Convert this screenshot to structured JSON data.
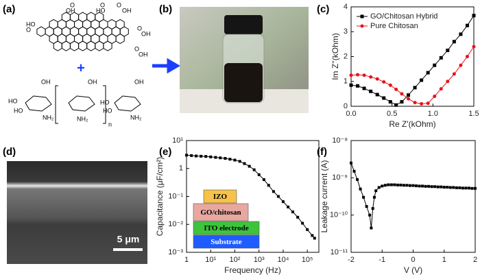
{
  "panel_labels": [
    "(a)",
    "(b)",
    "(c)",
    "(d)",
    "(e)",
    "(f)"
  ],
  "graphene_oxide_labels": [
    "O",
    "OH",
    "HO",
    "O",
    "O",
    "OH",
    "HO",
    "O",
    "O",
    "OH",
    "O",
    "OH"
  ],
  "plus": "+",
  "chitosan_labels": [
    "OH",
    "HO",
    "HO",
    "NH₂",
    "OH",
    "NH₂",
    "n",
    "OH",
    "HO",
    "HO",
    "NH₂"
  ],
  "sem_scale_bar": "5 μm",
  "chart_data": [
    {
      "type": "line",
      "xlabel": "Re Z'(kOhm)",
      "ylabel": "Im Z''(kOhm)",
      "x": [
        0,
        0.08,
        0.16,
        0.24,
        0.32,
        0.4,
        0.48,
        0.55,
        0.62,
        0.7,
        0.78,
        0.86,
        0.94,
        1.02,
        1.1,
        1.18,
        1.26,
        1.34,
        1.42,
        1.5
      ],
      "series": [
        {
          "name": "GO/Chitosan Hybrid",
          "color": "#000000",
          "marker": "square",
          "values": [
            0.85,
            0.82,
            0.72,
            0.6,
            0.47,
            0.33,
            0.18,
            0.05,
            0.18,
            0.45,
            0.75,
            1.05,
            1.35,
            1.65,
            1.95,
            2.25,
            2.6,
            2.9,
            3.25,
            3.65
          ]
        },
        {
          "name": "Pure Chitosan",
          "color": "#e8121a",
          "marker": "circle",
          "values": [
            1.25,
            1.27,
            1.25,
            1.18,
            1.1,
            0.98,
            0.85,
            0.68,
            0.5,
            0.3,
            0.15,
            0.1,
            0.12,
            0.4,
            0.7,
            1.0,
            1.3,
            1.65,
            2.0,
            2.4
          ]
        }
      ],
      "xlim": [
        0,
        1.5
      ],
      "ylim": [
        0,
        4
      ],
      "xticks": [
        {
          "value": 0,
          "label": "0.0"
        },
        0.5,
        {
          "value": 1,
          "label": "1.0"
        },
        1.5
      ],
      "yticks": [
        0,
        1,
        2,
        3,
        4
      ],
      "legend": "upper left"
    },
    {
      "type": "line",
      "xlabel": "Frequency (Hz)",
      "ylabel": "Capacitance (μF/cm²)",
      "log_x": true,
      "log_y": true,
      "x": [
        1,
        1.6,
        2.5,
        4,
        6.3,
        10,
        16,
        25,
        40,
        63,
        100,
        160,
        250,
        400,
        630,
        1000,
        1600,
        2500,
        4000,
        6300,
        10000,
        16000,
        25000,
        40000,
        63000,
        100000,
        160000,
        200000
      ],
      "series": [
        {
          "color": "#000000",
          "marker": "square",
          "values": [
            3.0,
            2.9,
            2.8,
            2.75,
            2.7,
            2.6,
            2.5,
            2.4,
            2.3,
            2.15,
            2.0,
            1.8,
            1.5,
            1.2,
            0.9,
            0.6,
            0.4,
            0.25,
            0.15,
            0.1,
            0.065,
            0.042,
            0.028,
            0.018,
            0.011,
            0.0065,
            0.004,
            0.0032
          ]
        }
      ],
      "xlim": [
        1,
        300000
      ],
      "ylim": [
        0.001,
        10
      ],
      "xticks": [
        1,
        {
          "value": 10,
          "label": "10¹"
        },
        {
          "value": 100,
          "label": "10²"
        },
        {
          "value": 1000,
          "label": "10³"
        },
        {
          "value": 10000,
          "label": "10⁴"
        },
        {
          "value": 100000,
          "label": "10⁵"
        }
      ],
      "yticks": [
        {
          "value": 0.001,
          "label": "10⁻³"
        },
        {
          "value": 0.01,
          "label": "10⁻²"
        },
        {
          "value": 0.1,
          "label": "10⁻¹"
        },
        1,
        {
          "value": 10,
          "label": "10¹"
        }
      ],
      "inset_layers": [
        {
          "label": "IZO",
          "color": "#f7c24a"
        },
        {
          "label": "GO/chitosan",
          "color": "#e8a8a0"
        },
        {
          "label": "ITO electrode",
          "color": "#3dc43d"
        },
        {
          "label": "Substrate",
          "color": "#1f5cff"
        }
      ]
    },
    {
      "type": "line",
      "xlabel": "V (V)",
      "ylabel": "Leakage current (A)",
      "log_y": true,
      "x": [
        -2,
        -1.9,
        -1.8,
        -1.7,
        -1.6,
        -1.5,
        -1.4,
        -1.35,
        -1.3,
        -1.25,
        -1.2,
        -1.1,
        -1,
        -0.9,
        -0.8,
        -0.7,
        -0.6,
        -0.5,
        -0.4,
        -0.3,
        -0.2,
        -0.1,
        0,
        0.1,
        0.2,
        0.3,
        0.4,
        0.5,
        0.6,
        0.7,
        0.8,
        0.9,
        1,
        1.1,
        1.2,
        1.3,
        1.4,
        1.5,
        1.6,
        1.7,
        1.8,
        1.9,
        2
      ],
      "series": [
        {
          "color": "#000000",
          "marker": "square",
          "values": [
            2.5e-09,
            1.5e-09,
            9e-10,
            5e-10,
            3e-10,
            1.7e-10,
            1e-10,
            4.5e-11,
            1.5e-10,
            3e-10,
            4.5e-10,
            5.5e-10,
            6e-10,
            6.3e-10,
            6.5e-10,
            6.5e-10,
            6.5e-10,
            6.4e-10,
            6.4e-10,
            6.3e-10,
            6.3e-10,
            6.2e-10,
            6.2e-10,
            6.1e-10,
            6e-10,
            6e-10,
            5.9e-10,
            5.9e-10,
            5.8e-10,
            5.8e-10,
            5.7e-10,
            5.7e-10,
            5.6e-10,
            5.6e-10,
            5.5e-10,
            5.5e-10,
            5.4e-10,
            5.4e-10,
            5.3e-10,
            5.3e-10,
            5.3e-10,
            5.2e-10,
            5.2e-10
          ]
        }
      ],
      "xlim": [
        -2,
        2
      ],
      "ylim": [
        1e-11,
        1e-08
      ],
      "xticks": [
        -2,
        -1,
        0,
        1,
        2
      ],
      "yticks": [
        {
          "value": 1e-11,
          "label": "10⁻¹¹"
        },
        {
          "value": 1e-10,
          "label": "10⁻¹⁰"
        },
        {
          "value": 1e-09,
          "label": "10⁻⁹"
        },
        {
          "value": 1e-08,
          "label": "10⁻⁸"
        }
      ]
    }
  ]
}
